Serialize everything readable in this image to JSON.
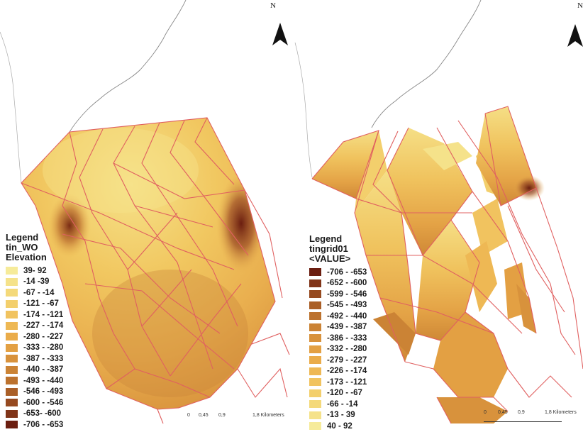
{
  "left_map": {
    "north_label": "N",
    "legend": {
      "title": "Legend",
      "layer": "tin_WO",
      "field": "Elevation",
      "classes": [
        {
          "label": "39- 92",
          "color": "#f6eb9a"
        },
        {
          "label": "-14 -39",
          "color": "#f5e28a"
        },
        {
          "label": "-67 - -14",
          "color": "#f4d97a"
        },
        {
          "label": "-121 - -67",
          "color": "#f3cf6c"
        },
        {
          "label": "-174 - -121",
          "color": "#f1c35f"
        },
        {
          "label": "-227 - -174",
          "color": "#eeb854"
        },
        {
          "label": "-280 - -227",
          "color": "#eaac4a"
        },
        {
          "label": "-333 - -280",
          "color": "#e3a043"
        },
        {
          "label": "-387 - -333",
          "color": "#d8923c"
        },
        {
          "label": "-440 - -387",
          "color": "#cb8335"
        },
        {
          "label": "-493 - -440",
          "color": "#bc722e"
        },
        {
          "label": "-546 - -493",
          "color": "#aa5f27"
        },
        {
          "label": "-600 - -546",
          "color": "#964a20"
        },
        {
          "label": "-653- -600",
          "color": "#803418"
        },
        {
          "label": "-706 - -653",
          "color": "#6b1e10"
        }
      ]
    },
    "scale": {
      "labels": [
        "0",
        "0,45",
        "0,9",
        "1,8 Kilometers"
      ]
    }
  },
  "right_map": {
    "north_label": "N",
    "legend": {
      "title": "Legend",
      "layer": "tingrid01",
      "field": "<VALUE>",
      "classes": [
        {
          "label": "-706 - -653",
          "color": "#6b1e10"
        },
        {
          "label": "-652 - -600",
          "color": "#803418"
        },
        {
          "label": "-599 - -546",
          "color": "#964a20"
        },
        {
          "label": "-545 - -493",
          "color": "#aa5f27"
        },
        {
          "label": "-492 - -440",
          "color": "#bc722e"
        },
        {
          "label": "-439 - -387",
          "color": "#cb8335"
        },
        {
          "label": "-386 - -333",
          "color": "#d8923c"
        },
        {
          "label": "-332 - -280",
          "color": "#e3a043"
        },
        {
          "label": "-279 - -227",
          "color": "#eaac4a"
        },
        {
          "label": "-226 - -174",
          "color": "#eeb854"
        },
        {
          "label": "-173 - -121",
          "color": "#f1c35f"
        },
        {
          "label": "-120 - -67",
          "color": "#f3cf6c"
        },
        {
          "label": "-66 - -14",
          "color": "#f4d97a"
        },
        {
          "label": "-13 - 39",
          "color": "#f5e28a"
        },
        {
          "label": "40 - 92",
          "color": "#f6eb9a"
        }
      ]
    },
    "scale": {
      "labels": [
        "0",
        "0,45",
        "0,9",
        "1,8 Kilometers"
      ]
    }
  },
  "colors": {
    "boundary_line": "#e06060",
    "coastline": "#888888",
    "background": "#ffffff"
  }
}
